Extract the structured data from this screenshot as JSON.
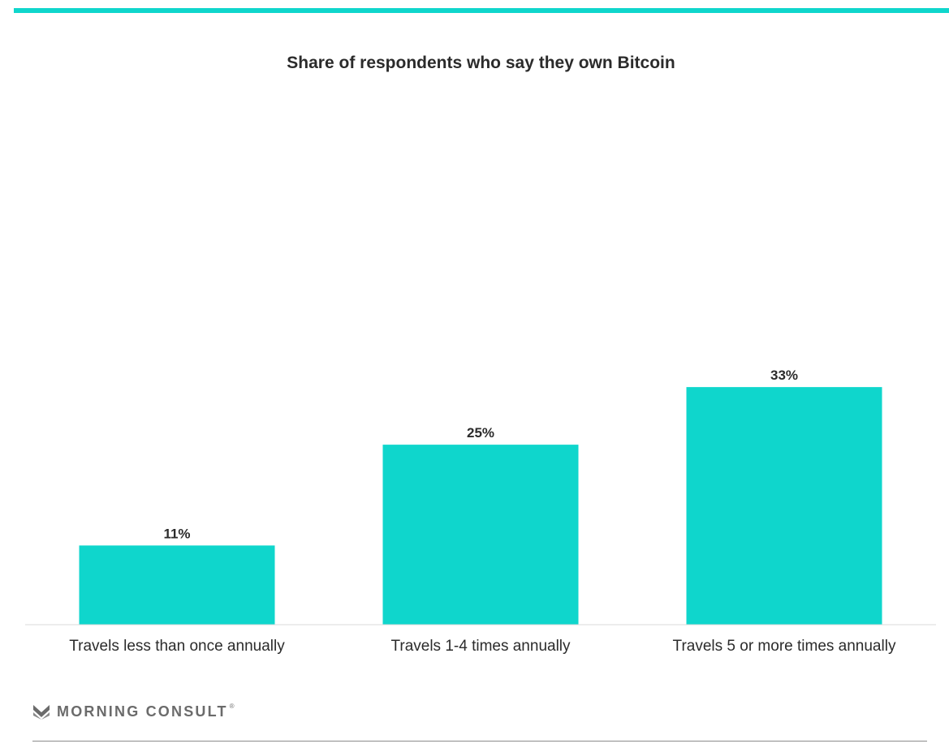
{
  "colors": {
    "accent": "#0fd6cc",
    "bar": "#0fd6cc",
    "text": "#2b2b2b",
    "axis": "#d9d9d9",
    "logo": "#6b6b6b"
  },
  "chart_data": {
    "type": "bar",
    "title": "Share of respondents who say they own Bitcoin",
    "categories": [
      "Travels less than once annually",
      "Travels 1-4 times annually",
      "Travels 5 or more times annually"
    ],
    "values": [
      11,
      25,
      33
    ],
    "value_labels": [
      "11%",
      "25%",
      "33%"
    ],
    "unit": "%",
    "ylim": [
      0,
      100
    ],
    "grid": false,
    "legend": "none"
  },
  "footer": {
    "brand": "MORNING CONSULT",
    "registered_mark": "®"
  }
}
